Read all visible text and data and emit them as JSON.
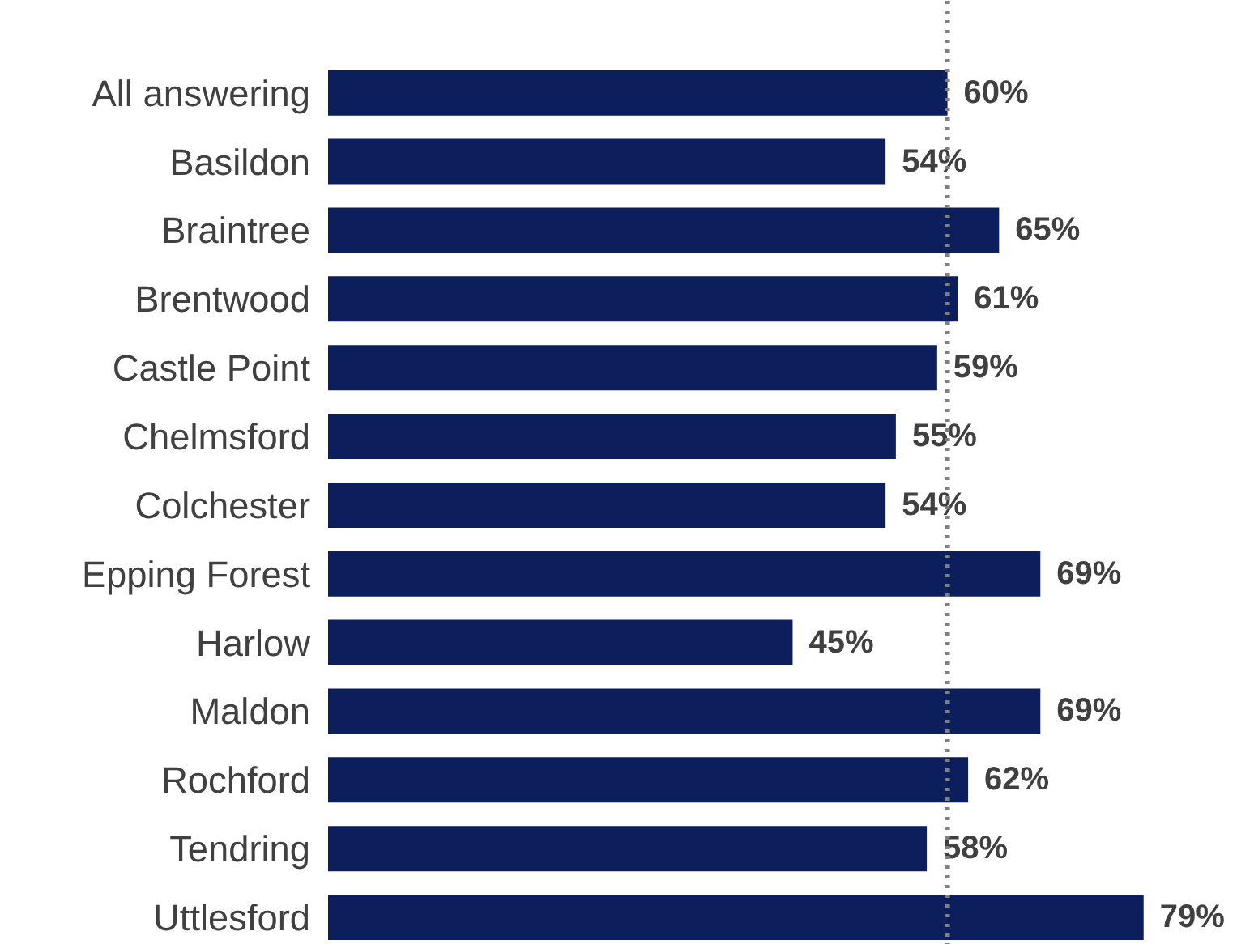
{
  "chart_data": {
    "type": "bar",
    "orientation": "horizontal",
    "categories": [
      "All answering",
      "Basildon",
      "Braintree",
      "Brentwood",
      "Castle Point",
      "Chelmsford",
      "Colchester",
      "Epping Forest",
      "Harlow",
      "Maldon",
      "Rochford",
      "Tendring",
      "Uttlesford"
    ],
    "values": [
      60,
      54,
      65,
      61,
      59,
      55,
      54,
      69,
      45,
      69,
      62,
      58,
      79
    ],
    "color": "#0c1f5c",
    "value_labels": [
      "60%",
      "54%",
      "65%",
      "61%",
      "59%",
      "55%",
      "54%",
      "69%",
      "45%",
      "69%",
      "62%",
      "58%",
      "79%"
    ],
    "tick_labels": "y",
    "grid": false,
    "ref_lines": [
      {
        "axis": "x",
        "value": 60,
        "color": "#808080",
        "line_style": "dotted"
      }
    ]
  }
}
